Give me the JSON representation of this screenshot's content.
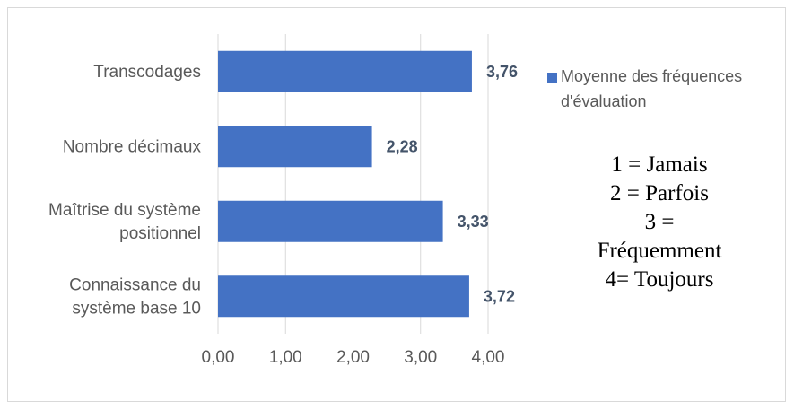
{
  "chart_data": {
    "type": "bar",
    "orientation": "horizontal",
    "categories": [
      "Transcodages",
      "Nombre décimaux",
      "Maîtrise du système positionnel",
      "Connaissance du système base 10"
    ],
    "category_lines": [
      [
        "Transcodages"
      ],
      [
        "Nombre décimaux"
      ],
      [
        "Maîtrise du système",
        "positionnel"
      ],
      [
        "Connaissance du",
        "système base 10"
      ]
    ],
    "series": [
      {
        "name": "Moyenne des fréquences d'évaluation",
        "values": [
          3.76,
          2.28,
          3.33,
          3.72
        ]
      }
    ],
    "data_labels": [
      "3,76",
      "2,28",
      "3,33",
      "3,72"
    ],
    "xlim": [
      0,
      4
    ],
    "x_ticks": [
      "0,00",
      "1,00",
      "2,00",
      "3,00",
      "4,00"
    ],
    "grid": "vertical",
    "legend_position": "right",
    "bar_color": "#4472c4"
  },
  "legend": {
    "label": "Moyenne des fréquences d'évaluation",
    "color": "#4472c4"
  },
  "note": {
    "lines": [
      "1 = Jamais",
      "2 = Parfois",
      "3 =",
      "Fréquemment",
      "4= Toujours"
    ]
  }
}
